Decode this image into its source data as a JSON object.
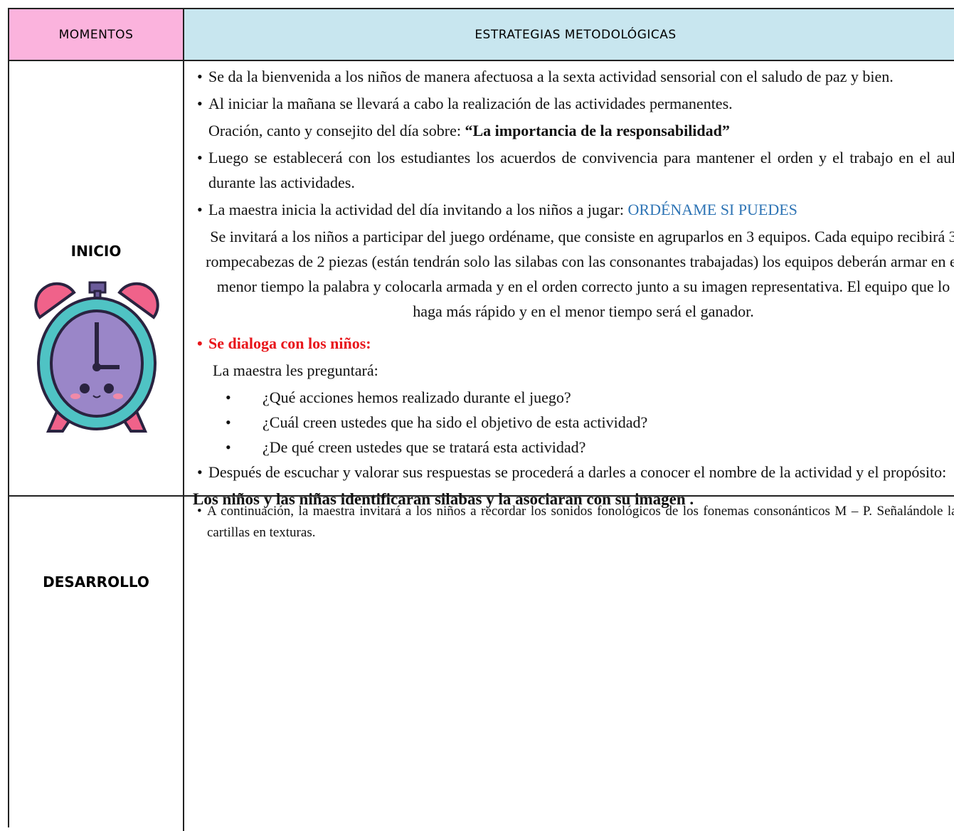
{
  "header": {
    "col1": "MOMENTOS",
    "col2": "ESTRATEGIAS METODOLÓGICAS"
  },
  "rows": [
    {
      "moment": "INICIO",
      "p0": "Se da la bienvenida a los niños de manera afectuosa a la sexta actividad sensorial con el saludo de paz y bien.",
      "p1": "Al iniciar la mañana se llevará a cabo la realización de las actividades permanentes.",
      "p2": [
        "Oración, canto y consejito del día sobre: ",
        "“La importancia de la responsabilidad”"
      ],
      "p3": "Luego se establecerá con los estudiantes los acuerdos de convivencia para mantener el orden y el trabajo en el aula durante las actividades.",
      "p4": [
        "La maestra inicia la actividad del día invitando a los niños a jugar: ",
        "ORDÉNAME SI PUEDES"
      ],
      "p5": "Se invitará a los niños a participar del juego ordéname, que consiste en agruparlos en 3 equipos. Cada equipo recibirá 3 rompecabezas de 2 piezas (están tendrán solo las silabas con las consonantes trabajadas) los equipos deberán armar en el menor tiempo la palabra y colocarla armada y en el orden correcto junto a su imagen representativa. El equipo que lo haga más rápido y en el menor tiempo será el ganador.",
      "p6": "Se dialoga con los niños:",
      "p7": "La maestra les preguntará:",
      "questions": [
        "¿Qué acciones hemos realizado durante el juego?",
        "¿Cuál creen ustedes que ha sido el objetivo de esta actividad?",
        "¿De qué creen ustedes que se tratará esta actividad?"
      ],
      "p8": "Después de escuchar y valorar sus respuestas se procederá a darles a conocer el nombre de la actividad y el propósito:",
      "p9": "Los niños y las niñas identificaran silabas y la asociaran con su imagen ."
    },
    {
      "moment": "DESARROLLO",
      "p0": "A continuación, la maestra invitará a los niños a recordar los sonidos fonológicos de los fonemas consonánticos M – P. Señalándole las cartillas en texturas."
    }
  ]
}
